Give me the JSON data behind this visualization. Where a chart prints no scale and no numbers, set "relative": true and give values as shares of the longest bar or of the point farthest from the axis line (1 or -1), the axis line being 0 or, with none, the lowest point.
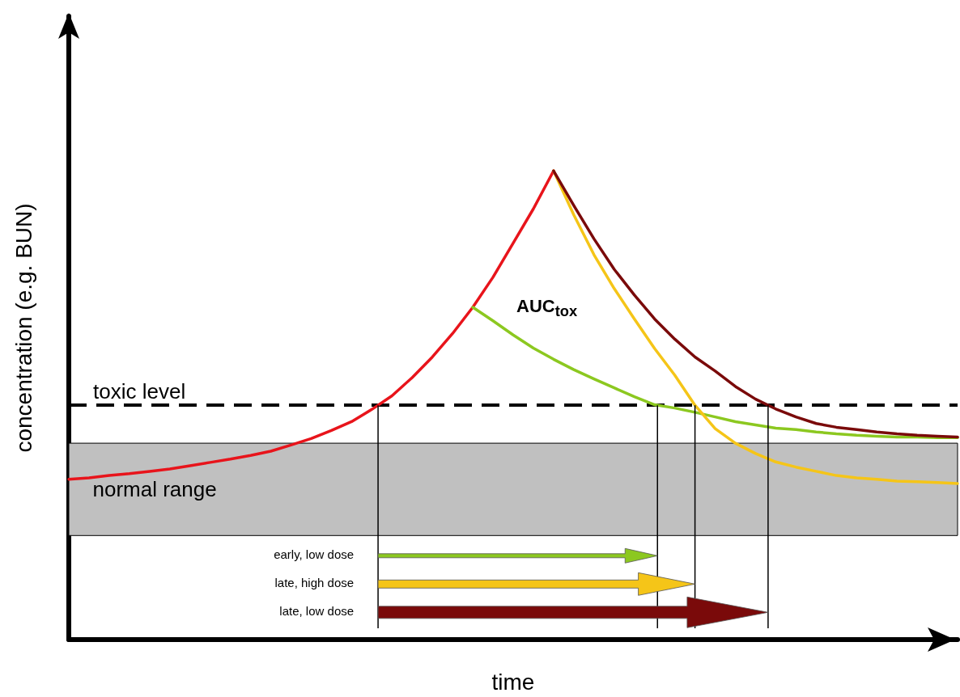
{
  "chart_data": {
    "type": "line",
    "relative": true,
    "xlabel": "time",
    "ylabel": "concentration (e.g. BUN)",
    "marker": "none",
    "line_style": "solid",
    "grid": false,
    "categories": [
      null,
      null,
      null,
      null,
      null,
      null,
      null,
      null,
      null,
      null,
      null,
      null,
      null,
      null,
      null,
      null,
      null,
      null,
      null,
      null,
      null,
      null,
      null,
      null,
      null,
      null,
      null,
      null,
      null,
      null,
      null,
      null,
      null,
      null,
      null,
      null,
      null,
      null,
      null,
      null,
      null,
      null,
      null,
      null,
      null
    ],
    "series": [
      {
        "color": "#e8141b",
        "values": [
          0.342,
          0.345,
          0.35,
          0.354,
          0.359,
          0.364,
          0.371,
          0.378,
          0.385,
          0.393,
          0.402,
          0.415,
          0.429,
          0.446,
          0.465,
          0.491,
          0.52,
          0.559,
          0.603,
          0.653,
          0.709,
          0.773,
          0.846,
          0.919,
          1.0,
          null,
          null,
          null,
          null,
          null,
          null,
          null,
          null,
          null,
          null,
          null,
          null,
          null,
          null,
          null,
          null,
          null,
          null,
          null,
          null
        ]
      },
      {
        "color": "#8cc820",
        "values": [
          null,
          null,
          null,
          null,
          null,
          null,
          null,
          null,
          null,
          null,
          null,
          null,
          null,
          null,
          null,
          null,
          null,
          null,
          null,
          null,
          0.709,
          0.68,
          0.65,
          0.622,
          0.598,
          0.576,
          0.556,
          0.537,
          0.518,
          0.501,
          0.494,
          0.485,
          0.475,
          0.465,
          0.458,
          0.451,
          0.448,
          0.443,
          0.439,
          0.436,
          0.434,
          0.432,
          0.432,
          0.431,
          0.431
        ]
      },
      {
        "color": "#f5c518",
        "values": [
          null,
          null,
          null,
          null,
          null,
          null,
          null,
          null,
          null,
          null,
          null,
          null,
          null,
          null,
          null,
          null,
          null,
          null,
          null,
          null,
          null,
          null,
          null,
          null,
          1.0,
          0.906,
          0.821,
          0.749,
          0.684,
          0.621,
          0.564,
          0.5,
          0.45,
          0.419,
          0.397,
          0.379,
          0.368,
          0.359,
          0.35,
          0.345,
          0.342,
          0.338,
          0.337,
          0.335,
          0.333
        ]
      },
      {
        "color": "#7a0a0a",
        "values": [
          null,
          null,
          null,
          null,
          null,
          null,
          null,
          null,
          null,
          null,
          null,
          null,
          null,
          null,
          null,
          null,
          null,
          null,
          null,
          null,
          null,
          null,
          null,
          null,
          1.0,
          0.926,
          0.855,
          0.79,
          0.735,
          0.684,
          0.641,
          0.603,
          0.573,
          0.54,
          0.513,
          0.492,
          0.475,
          0.461,
          0.453,
          0.448,
          0.443,
          0.439,
          0.436,
          0.434,
          0.432
        ]
      }
    ],
    "ref_lines": [
      {
        "axis": "y",
        "value": 0.5,
        "label": "toxic level",
        "color": "#000000",
        "line_style": "dashed"
      }
    ],
    "bands": [
      {
        "axis": "y",
        "from": 0.222,
        "to": 0.419,
        "label": "normal range",
        "color": "#c0c0c0"
      }
    ],
    "annotations": [
      "AUC$_{tox}$",
      "early, low dose",
      "late, high dose",
      "late, low dose"
    ]
  }
}
